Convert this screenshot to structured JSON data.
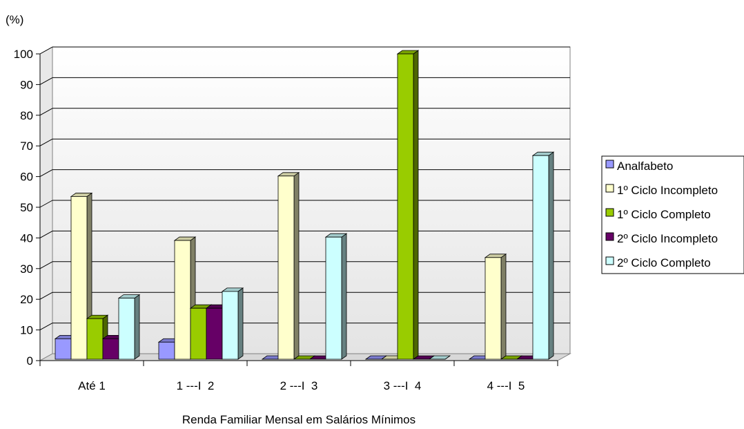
{
  "chart_data": {
    "type": "bar",
    "ylabel": "(%)",
    "xlabel": "Renda Familiar Mensal em Salários Mínimos",
    "categories": [
      "Até 1",
      "1 ---I  2",
      "2 ---I  3",
      "3 ---I  4",
      "4 ---I  5"
    ],
    "ylim": [
      0,
      100
    ],
    "yticks": [
      0,
      10,
      20,
      30,
      40,
      50,
      60,
      70,
      80,
      90,
      100
    ],
    "grid": true,
    "legend_position": "right",
    "series": [
      {
        "name": "Analfabeto",
        "color": "#9999ff",
        "values": [
          6.7,
          5.6,
          0,
          0,
          0
        ]
      },
      {
        "name": "1º Ciclo Incompleto",
        "color": "#ffffcc",
        "values": [
          53.3,
          38.9,
          60,
          0,
          33.3
        ]
      },
      {
        "name": "1º Ciclo Completo",
        "color": "#99cc00",
        "values": [
          13.3,
          16.7,
          0,
          100,
          0
        ]
      },
      {
        "name": "2º Ciclo Incompleto",
        "color": "#660066",
        "values": [
          6.7,
          16.7,
          0,
          0,
          0
        ]
      },
      {
        "name": "2º Ciclo Completo",
        "color": "#ccffff",
        "values": [
          20,
          22.2,
          40,
          0,
          66.7
        ]
      }
    ]
  }
}
